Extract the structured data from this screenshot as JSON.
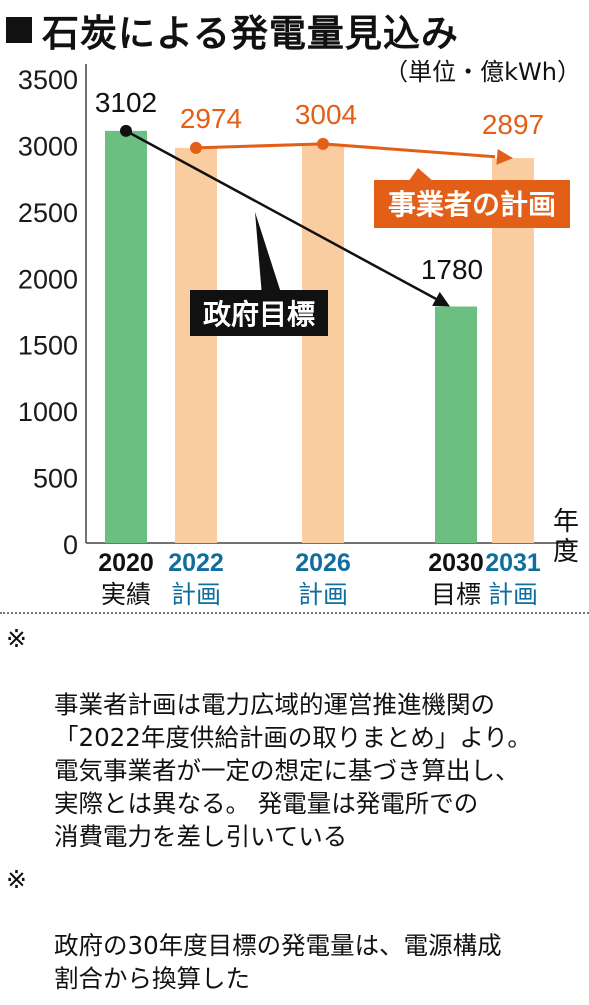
{
  "title": "石炭による発電量見込み",
  "unit_label": "（単位・億kWh）",
  "chart_data": {
    "type": "bar",
    "x_axis_suffix": "年度",
    "ylim": [
      0,
      3500
    ],
    "y_ticks": [
      0,
      500,
      1000,
      1500,
      2000,
      2500,
      3000,
      3500
    ],
    "grid": false,
    "categories": [
      {
        "year": "2020",
        "label": "実績"
      },
      {
        "year": "2022",
        "label": "計画"
      },
      {
        "year": "2026",
        "label": "計画"
      },
      {
        "year": "2030",
        "label": "目標"
      },
      {
        "year": "2031",
        "label": "計画"
      }
    ],
    "bars": [
      {
        "category": "2020",
        "value": 3102,
        "kind": "actual",
        "value_label": "3102"
      },
      {
        "category": "2022",
        "value": 2974,
        "kind": "plan",
        "value_label": "2974"
      },
      {
        "category": "2026",
        "value": 3004,
        "kind": "plan",
        "value_label": "3004"
      },
      {
        "category": "2030",
        "value": 1780,
        "kind": "target",
        "value_label": "1780"
      },
      {
        "category": "2031",
        "value": 2897,
        "kind": "plan",
        "value_label": "2897"
      }
    ],
    "lines": [
      {
        "name": "政府目標",
        "points": [
          [
            "2020",
            3102
          ],
          [
            "2030",
            1780
          ]
        ],
        "color": "#111111"
      },
      {
        "name": "事業者の計画",
        "points": [
          [
            "2022",
            2974
          ],
          [
            "2026",
            3004
          ],
          [
            "2031",
            2897
          ]
        ],
        "color": "#e35f17"
      }
    ],
    "colors": {
      "actual_bar": "#6dbf81",
      "plan_bar": "#f9cd9f",
      "plan_text": "#0f6e9e",
      "operator_line": "#e35f17",
      "gov_line": "#111111"
    }
  },
  "notes": [
    {
      "mark": "※",
      "text": "事業者計画は電力広域的運営推進機関の\n「2022年度供給計画の取りまとめ」より。\n電気事業者が一定の想定に基づき算出し、\n実際とは異なる。 発電量は発電所での\n消費電力を差し引いている"
    },
    {
      "mark": "※",
      "text": "政府の30年度目標の発電量は、電源構成\n割合から換算した"
    }
  ]
}
